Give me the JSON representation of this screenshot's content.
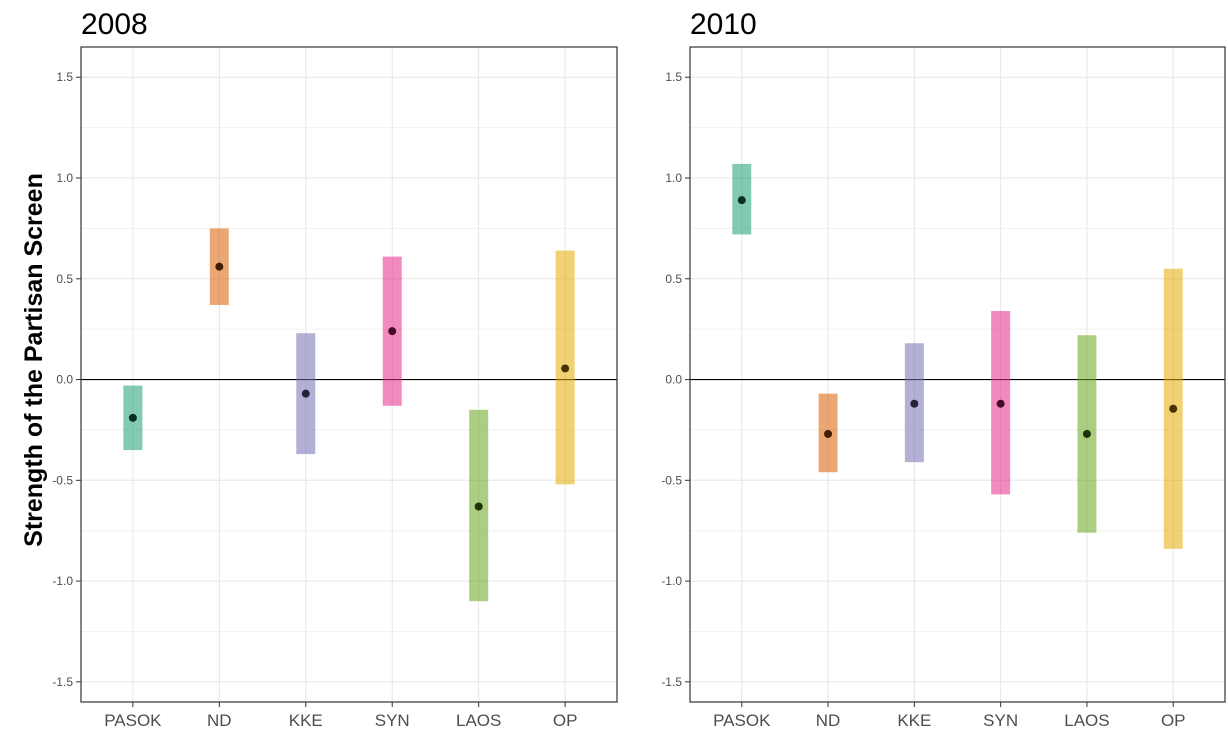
{
  "ylabel": "Strength of the Partisan Screen",
  "colors": {
    "PASOK": "#1b9e77",
    "ND": "#d95f02",
    "KKE": "#7570b3",
    "SYN": "#e7298a",
    "LAOS": "#66a61e",
    "OP": "#e6ab02"
  },
  "chart_data": [
    {
      "type": "crossbar",
      "title": "2008",
      "categories": [
        "PASOK",
        "ND",
        "KKE",
        "SYN",
        "LAOS",
        "OP"
      ],
      "estimates": [
        -0.19,
        0.56,
        -0.07,
        0.24,
        -0.63,
        0.055
      ],
      "lower": [
        -0.35,
        0.37,
        -0.37,
        -0.13,
        -1.1,
        -0.52
      ],
      "upper": [
        -0.03,
        0.75,
        0.23,
        0.61,
        -0.15,
        0.64
      ],
      "ylim": [
        -1.6,
        1.65
      ],
      "yticks": [
        -1.5,
        -1.0,
        -0.5,
        0.0,
        0.5,
        1.0,
        1.5
      ],
      "ytick_labels": [
        "-1.5",
        "-1.0",
        "-0.5",
        "0.0",
        "0.5",
        "1.0",
        "1.5"
      ],
      "hline": 0,
      "grid": true
    },
    {
      "type": "crossbar",
      "title": "2010",
      "categories": [
        "PASOK",
        "ND",
        "KKE",
        "SYN",
        "LAOS",
        "OP"
      ],
      "estimates": [
        0.89,
        -0.27,
        -0.12,
        -0.12,
        -0.27,
        -0.145
      ],
      "lower": [
        0.72,
        -0.46,
        -0.41,
        -0.57,
        -0.76,
        -0.84
      ],
      "upper": [
        1.07,
        -0.07,
        0.18,
        0.34,
        0.22,
        0.55
      ],
      "ylim": [
        -1.6,
        1.65
      ],
      "yticks": [
        -1.5,
        -1.0,
        -0.5,
        0.0,
        0.5,
        1.0,
        1.5
      ],
      "ytick_labels": [
        "-1.5",
        "-1.0",
        "-0.5",
        "0.0",
        "0.5",
        "1.0",
        "1.5"
      ],
      "hline": 0,
      "grid": true
    }
  ]
}
